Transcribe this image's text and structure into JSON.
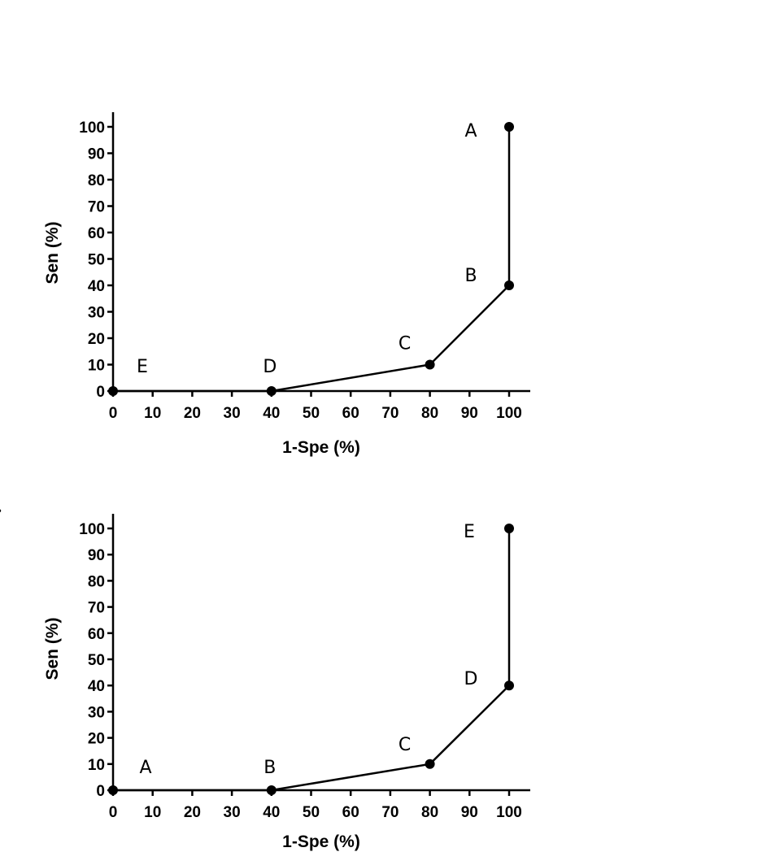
{
  "chart_data": [
    {
      "type": "line",
      "xlabel": "1-Spe (%)",
      "ylabel": "Sen (%)",
      "xlim": [
        0,
        100
      ],
      "ylim": [
        0,
        100
      ],
      "xticks": [
        0,
        10,
        20,
        30,
        40,
        50,
        60,
        70,
        80,
        90,
        100
      ],
      "yticks": [
        0,
        10,
        20,
        30,
        40,
        50,
        60,
        70,
        80,
        90,
        100
      ],
      "grid": false,
      "series": [
        {
          "x": [
            0,
            40,
            80,
            100,
            100
          ],
          "y": [
            0,
            0,
            10,
            40,
            100
          ],
          "point_labels": [
            "E",
            "D",
            "C",
            "B",
            "A"
          ]
        }
      ]
    },
    {
      "type": "line",
      "panel_label": "b.",
      "xlabel": "1-Spe (%)",
      "ylabel": "Sen (%)",
      "xlim": [
        0,
        100
      ],
      "ylim": [
        0,
        100
      ],
      "xticks": [
        0,
        10,
        20,
        30,
        40,
        50,
        60,
        70,
        80,
        90,
        100
      ],
      "yticks": [
        0,
        10,
        20,
        30,
        40,
        50,
        60,
        70,
        80,
        90,
        100
      ],
      "grid": false,
      "series": [
        {
          "x": [
            0,
            40,
            80,
            100,
            100
          ],
          "y": [
            0,
            0,
            10,
            40,
            100
          ],
          "point_labels": [
            "A",
            "B",
            "C",
            "D",
            "E"
          ]
        }
      ]
    }
  ]
}
